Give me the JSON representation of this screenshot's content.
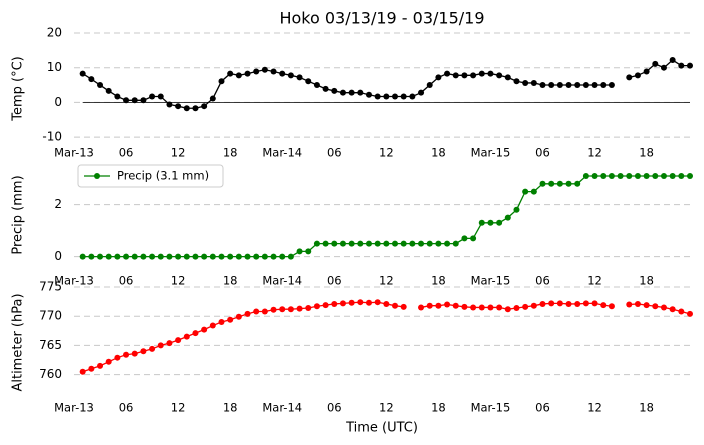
{
  "chart_data": [
    {
      "type": "line",
      "title": "Hoko 03/13/19 - 03/15/19",
      "ylabel": "Temp (°C)",
      "x": [
        1,
        2,
        3,
        4,
        5,
        6,
        7,
        8,
        9,
        10,
        11,
        12,
        13,
        14,
        15,
        16,
        17,
        18,
        19,
        20,
        21,
        22,
        23,
        24,
        25,
        26,
        27,
        28,
        29,
        30,
        31,
        32,
        33,
        34,
        35,
        36,
        37,
        38,
        39,
        40,
        41,
        42,
        43,
        44,
        45,
        46,
        47,
        48,
        49,
        50,
        51,
        52,
        53,
        54,
        55,
        56,
        57,
        58,
        59,
        60,
        61,
        62,
        63,
        64,
        65,
        66,
        67,
        68,
        69,
        70,
        71
      ],
      "series": [
        {
          "color": "#000000",
          "values": [
            8.3,
            6.7,
            5,
            3.3,
            1.7,
            0.6,
            0.6,
            0.6,
            1.7,
            1.7,
            -0.6,
            -1.1,
            -1.7,
            -1.7,
            -1.1,
            1.1,
            6.1,
            8.3,
            7.8,
            8.3,
            8.9,
            9.4,
            8.9,
            8.3,
            7.8,
            7.2,
            6.1,
            5,
            3.9,
            3.3,
            2.8,
            2.8,
            2.8,
            2.2,
            1.7,
            1.7,
            1.7,
            1.7,
            1.7,
            2.8,
            5,
            7.2,
            8.3,
            7.8,
            7.8,
            7.8,
            8.3,
            8.3,
            7.8,
            7.2,
            6.1,
            5.6,
            5.6,
            5,
            5,
            5,
            5,
            5,
            5,
            5,
            5,
            5,
            null,
            7.2,
            7.8,
            8.9,
            11.1,
            10,
            12.2,
            10.6,
            10.6
          ]
        }
      ],
      "xlim": [
        0,
        71
      ],
      "xticks": [
        {
          "value": 0,
          "label": "Mar-13"
        },
        {
          "value": 6,
          "label": "06"
        },
        {
          "value": 12,
          "label": "12"
        },
        {
          "value": 18,
          "label": "18"
        },
        {
          "value": 24,
          "label": "Mar-14"
        },
        {
          "value": 30,
          "label": "06"
        },
        {
          "value": 36,
          "label": "12"
        },
        {
          "value": 42,
          "label": "18"
        },
        {
          "value": 48,
          "label": "Mar-15"
        },
        {
          "value": 54,
          "label": "06"
        },
        {
          "value": 60,
          "label": "12"
        },
        {
          "value": 66,
          "label": "18"
        }
      ],
      "ylim": [
        -12,
        20
      ],
      "yticks": [
        -10,
        0,
        10,
        20
      ],
      "grid": true,
      "hline": 0
    },
    {
      "type": "line",
      "ylabel": "Precip (mm)",
      "x": [
        1,
        2,
        3,
        4,
        5,
        6,
        7,
        8,
        9,
        10,
        11,
        12,
        13,
        14,
        15,
        16,
        17,
        18,
        19,
        20,
        21,
        22,
        23,
        24,
        25,
        26,
        27,
        28,
        29,
        30,
        31,
        32,
        33,
        34,
        35,
        36,
        37,
        38,
        39,
        40,
        41,
        42,
        43,
        44,
        45,
        46,
        47,
        48,
        49,
        50,
        51,
        52,
        53,
        54,
        55,
        56,
        57,
        58,
        59,
        60,
        61,
        62,
        63,
        64,
        65,
        66,
        67,
        68,
        69,
        70,
        71
      ],
      "series": [
        {
          "name": "Precip (3.1 mm)",
          "color": "#008000",
          "values": [
            0,
            0,
            0,
            0,
            0,
            0,
            0,
            0,
            0,
            0,
            0,
            0,
            0,
            0,
            0,
            0,
            0,
            0,
            0,
            0,
            0,
            0,
            0,
            0,
            0,
            0.2,
            0.2,
            0.5,
            0.5,
            0.5,
            0.5,
            0.5,
            0.5,
            0.5,
            0.5,
            0.5,
            0.5,
            0.5,
            0.5,
            0.5,
            0.5,
            0.5,
            0.5,
            0.5,
            0.7,
            0.7,
            1.3,
            1.3,
            1.3,
            1.5,
            1.8,
            2.5,
            2.5,
            2.8,
            2.8,
            2.8,
            2.8,
            2.8,
            3.1,
            3.1,
            3.1,
            3.1,
            3.1,
            3.1,
            3.1,
            3.1,
            3.1,
            3.1,
            3.1,
            3.1,
            3.1
          ]
        }
      ],
      "xlim": [
        0,
        71
      ],
      "xticks": [
        {
          "value": 0,
          "label": "Mar-13"
        },
        {
          "value": 6,
          "label": "06"
        },
        {
          "value": 12,
          "label": "12"
        },
        {
          "value": 18,
          "label": "18"
        },
        {
          "value": 24,
          "label": "Mar-14"
        },
        {
          "value": 30,
          "label": "06"
        },
        {
          "value": 36,
          "label": "12"
        },
        {
          "value": 42,
          "label": "18"
        },
        {
          "value": 48,
          "label": "Mar-15"
        },
        {
          "value": 54,
          "label": "06"
        },
        {
          "value": 60,
          "label": "12"
        },
        {
          "value": 66,
          "label": "18"
        }
      ],
      "ylim": [
        -0.4,
        3.6
      ],
      "yticks": [
        0,
        2
      ],
      "grid": true,
      "legend": "upper left"
    },
    {
      "type": "line",
      "ylabel": "Altimeter (hPa)",
      "xlabel": "Time (UTC)",
      "x": [
        1,
        2,
        3,
        4,
        5,
        6,
        7,
        8,
        9,
        10,
        11,
        12,
        13,
        14,
        15,
        16,
        17,
        18,
        19,
        20,
        21,
        22,
        23,
        24,
        25,
        26,
        27,
        28,
        29,
        30,
        31,
        32,
        33,
        34,
        35,
        36,
        37,
        38,
        39,
        40,
        41,
        42,
        43,
        44,
        45,
        46,
        47,
        48,
        49,
        50,
        51,
        52,
        53,
        54,
        55,
        56,
        57,
        58,
        59,
        60,
        61,
        62,
        63,
        64,
        65,
        66,
        67,
        68,
        69,
        70,
        71
      ],
      "series": [
        {
          "color": "#ff0000",
          "values": [
            760.5,
            761,
            761.5,
            762.2,
            762.9,
            763.4,
            763.6,
            764,
            764.4,
            765,
            765.4,
            765.9,
            766.5,
            767.1,
            767.7,
            768.4,
            769,
            769.4,
            769.9,
            770.4,
            770.8,
            770.8,
            771.1,
            771.2,
            771.2,
            771.3,
            771.4,
            771.7,
            771.9,
            772.1,
            772.2,
            772.3,
            772.4,
            772.3,
            772.4,
            772.1,
            771.8,
            771.6,
            null,
            771.5,
            771.8,
            771.8,
            772,
            771.8,
            771.6,
            771.5,
            771.5,
            771.5,
            771.5,
            771.2,
            771.4,
            771.6,
            771.8,
            772.1,
            772.2,
            772.2,
            772.1,
            772.1,
            772.2,
            772.2,
            771.9,
            771.7,
            null,
            772,
            772.1,
            771.9,
            771.7,
            771.5,
            771.2,
            770.8,
            770.4
          ]
        }
      ],
      "xlim": [
        0,
        71
      ],
      "xticks": [
        {
          "value": 0,
          "label": "Mar-13"
        },
        {
          "value": 6,
          "label": "06"
        },
        {
          "value": 12,
          "label": "12"
        },
        {
          "value": 18,
          "label": "18"
        },
        {
          "value": 24,
          "label": "Mar-14"
        },
        {
          "value": 30,
          "label": "06"
        },
        {
          "value": 36,
          "label": "12"
        },
        {
          "value": 42,
          "label": "18"
        },
        {
          "value": 48,
          "label": "Mar-15"
        },
        {
          "value": 54,
          "label": "06"
        },
        {
          "value": 60,
          "label": "12"
        },
        {
          "value": 66,
          "label": "18"
        }
      ],
      "ylim": [
        756,
        775
      ],
      "yticks": [
        760,
        765,
        770,
        775
      ],
      "grid": true
    }
  ]
}
